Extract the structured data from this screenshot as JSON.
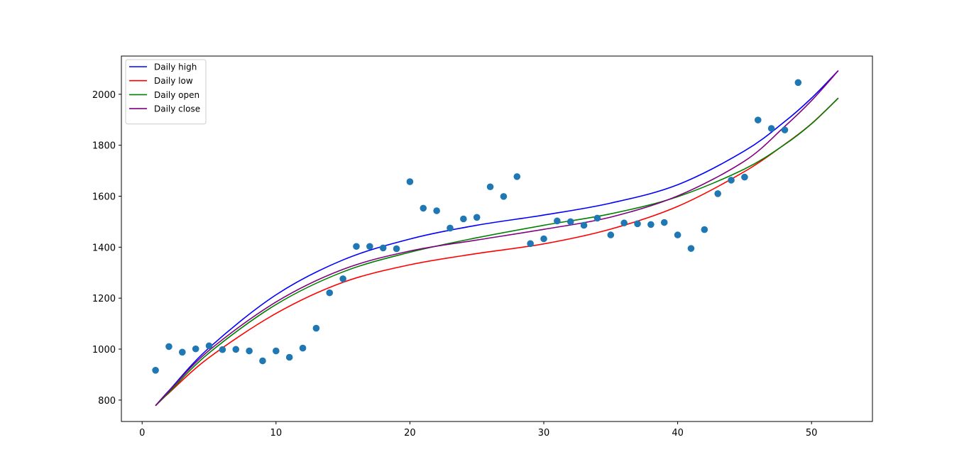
{
  "chart_data": {
    "type": "scatter",
    "title": "",
    "xlabel": "",
    "ylabel": "",
    "xlim": [
      -1.55,
      54.55
    ],
    "ylim": [
      716,
      2150
    ],
    "x_ticks": [
      0,
      10,
      20,
      30,
      40,
      50
    ],
    "y_ticks": [
      800,
      1000,
      1200,
      1400,
      1600,
      1800,
      2000
    ],
    "grid": false,
    "legend_placement": "top-left",
    "scatter": {
      "color": "#1f77b4",
      "points": [
        [
          1,
          917
        ],
        [
          2,
          1010
        ],
        [
          3,
          988
        ],
        [
          4,
          1001
        ],
        [
          5,
          1013
        ],
        [
          6,
          998
        ],
        [
          7,
          999
        ],
        [
          8,
          993
        ],
        [
          9,
          954
        ],
        [
          10,
          993
        ],
        [
          11,
          968
        ],
        [
          12,
          1004
        ],
        [
          13,
          1082
        ],
        [
          14,
          1221
        ],
        [
          15,
          1276
        ],
        [
          16,
          1403
        ],
        [
          17,
          1403
        ],
        [
          18,
          1397
        ],
        [
          19,
          1394
        ],
        [
          20,
          1657
        ],
        [
          21,
          1553
        ],
        [
          22,
          1543
        ],
        [
          23,
          1475
        ],
        [
          24,
          1511
        ],
        [
          25,
          1517
        ],
        [
          26,
          1637
        ],
        [
          27,
          1599
        ],
        [
          28,
          1677
        ],
        [
          29,
          1414
        ],
        [
          30,
          1433
        ],
        [
          31,
          1503
        ],
        [
          32,
          1500
        ],
        [
          33,
          1486
        ],
        [
          34,
          1514
        ],
        [
          35,
          1448
        ],
        [
          36,
          1495
        ],
        [
          37,
          1492
        ],
        [
          38,
          1489
        ],
        [
          39,
          1497
        ],
        [
          40,
          1448
        ],
        [
          41,
          1395
        ],
        [
          42,
          1469
        ],
        [
          43,
          1610
        ],
        [
          44,
          1663
        ],
        [
          45,
          1675
        ],
        [
          46,
          1899
        ],
        [
          47,
          1866
        ],
        [
          48,
          1860
        ],
        [
          49,
          2046
        ]
      ]
    },
    "series": [
      {
        "name": "Daily high",
        "color": "#0000ff",
        "x": [
          1,
          2,
          5,
          10,
          15,
          20,
          25,
          30,
          35,
          40,
          45,
          48,
          50,
          52
        ],
        "y": [
          778,
          837,
          1005,
          1213,
          1350,
          1432,
          1486,
          1526,
          1573,
          1645,
          1778,
          1893,
          1985,
          2093
        ]
      },
      {
        "name": "Daily low",
        "color": "#ff0000",
        "x": [
          1,
          2,
          5,
          10,
          15,
          20,
          25,
          30,
          35,
          40,
          45,
          48,
          50,
          52
        ],
        "y": [
          778,
          828,
          967,
          1140,
          1262,
          1331,
          1375,
          1413,
          1471,
          1560,
          1697,
          1804,
          1885,
          1985
        ]
      },
      {
        "name": "Daily open",
        "color": "#008000",
        "x": [
          1,
          2,
          5,
          10,
          15,
          20,
          25,
          30,
          35,
          40,
          45,
          48,
          50,
          52
        ],
        "y": [
          778,
          830,
          985,
          1175,
          1303,
          1380,
          1437,
          1486,
          1531,
          1598,
          1707,
          1803,
          1884,
          1985
        ]
      },
      {
        "name": "Daily close",
        "color": "#800080",
        "x": [
          1,
          2,
          5,
          10,
          15,
          20,
          25,
          30,
          35,
          40,
          45,
          48,
          50,
          52
        ],
        "y": [
          778,
          835,
          995,
          1185,
          1313,
          1385,
          1428,
          1470,
          1518,
          1601,
          1738,
          1874,
          1975,
          2093
        ]
      }
    ]
  }
}
